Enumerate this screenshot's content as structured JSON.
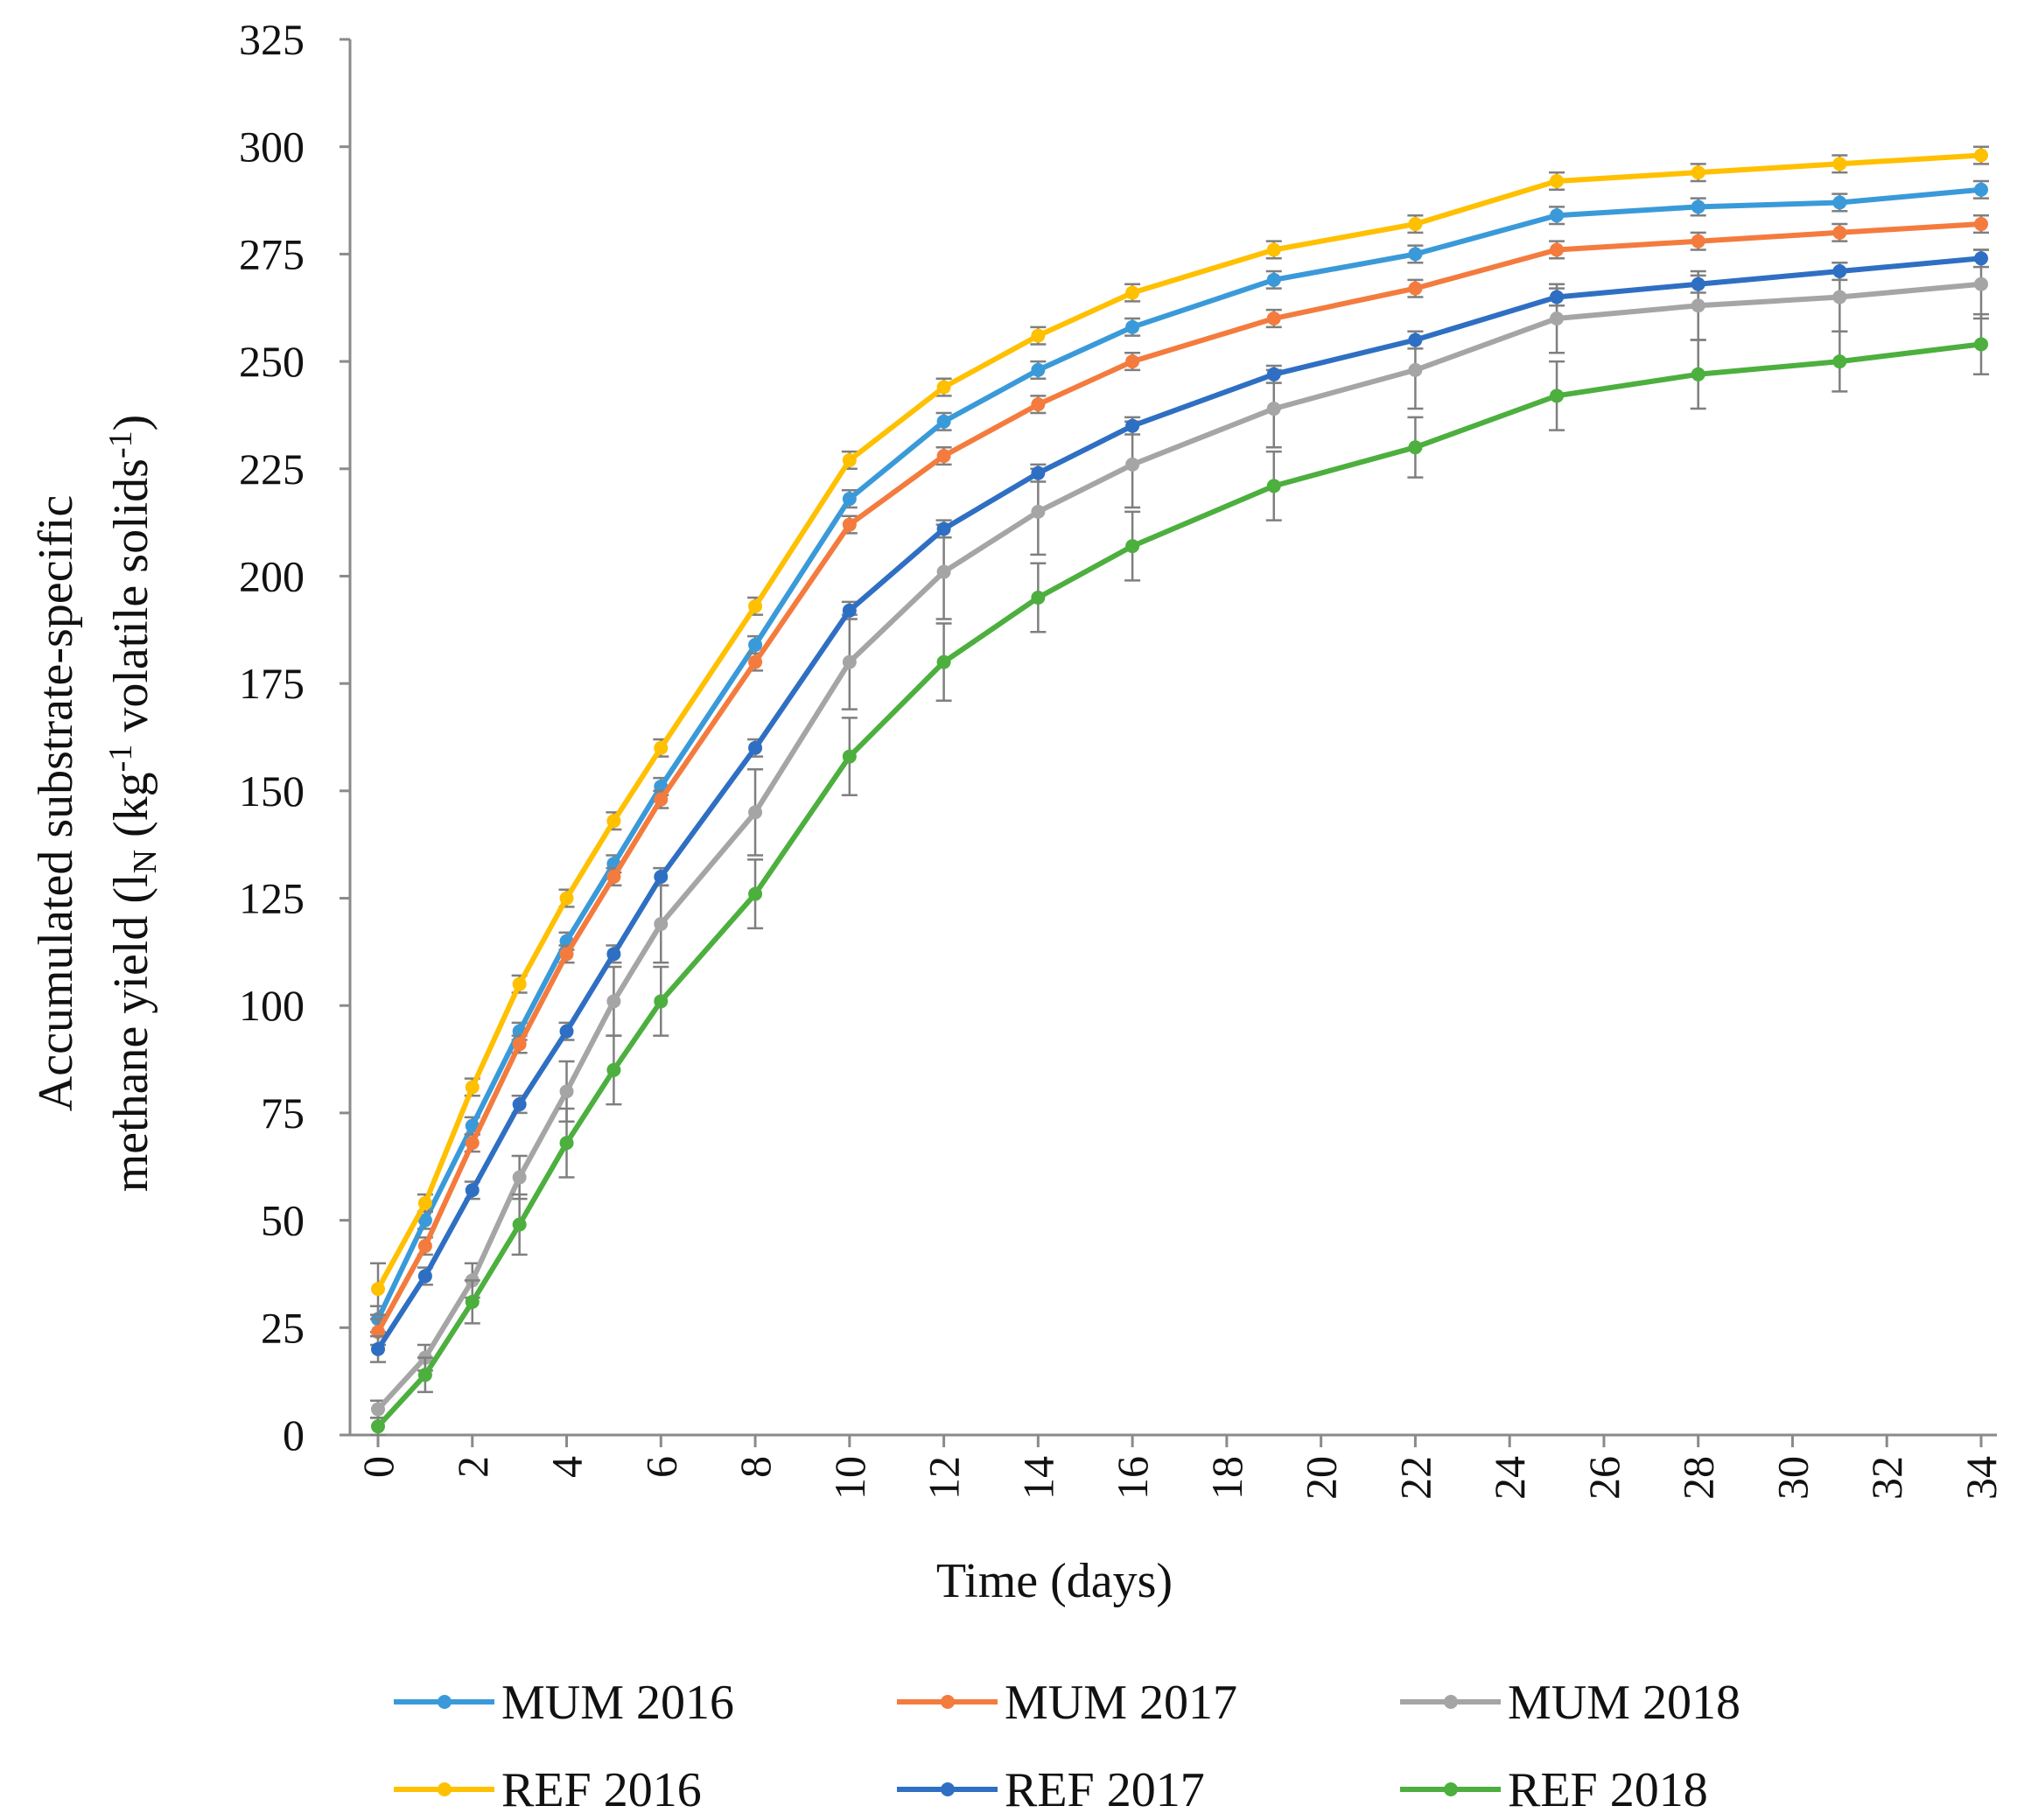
{
  "chart_data": {
    "type": "line",
    "title": "",
    "xlabel": "Time (days)",
    "ylabel_line1": "Accumulated substrate-specific",
    "ylabel_line2_parts": [
      "methane yield (l",
      "N",
      " (kg",
      "-1",
      " volatile solids",
      "-1",
      ")"
    ],
    "xlim": [
      0,
      34
    ],
    "ylim": [
      0,
      325
    ],
    "x_ticks": [
      0,
      2,
      4,
      6,
      8,
      10,
      12,
      14,
      16,
      18,
      20,
      22,
      24,
      26,
      28,
      30,
      32,
      34
    ],
    "y_ticks": [
      0,
      25,
      50,
      75,
      100,
      125,
      150,
      175,
      200,
      225,
      250,
      275,
      300,
      325
    ],
    "grid": false,
    "legend_position": "bottom",
    "x": [
      0,
      1,
      2,
      3,
      4,
      5,
      6,
      8,
      10,
      12,
      14,
      16,
      19,
      22,
      25,
      28,
      31,
      34
    ],
    "series": [
      {
        "name": "MUM 2016",
        "color": "#3A9AD9",
        "values": [
          27,
          50,
          72,
          94,
          115,
          133,
          151,
          184,
          218,
          236,
          248,
          258,
          269,
          275,
          284,
          286,
          287,
          290
        ],
        "errors": [
          3,
          2,
          2,
          2,
          2,
          2,
          2,
          2,
          2,
          2,
          2,
          2,
          2,
          2,
          2,
          2,
          2,
          2
        ]
      },
      {
        "name": "MUM 2017",
        "color": "#F47B3E",
        "values": [
          24,
          44,
          68,
          91,
          112,
          130,
          148,
          180,
          212,
          228,
          240,
          250,
          260,
          267,
          276,
          278,
          280,
          282
        ],
        "errors": [
          3,
          2,
          2,
          2,
          2,
          2,
          2,
          2,
          2,
          2,
          2,
          2,
          2,
          2,
          2,
          2,
          2,
          2
        ]
      },
      {
        "name": "MUM 2018",
        "color": "#A5A5A5",
        "values": [
          6,
          18,
          36,
          60,
          80,
          101,
          119,
          145,
          180,
          201,
          215,
          226,
          239,
          248,
          260,
          263,
          265,
          268
        ],
        "errors": [
          2,
          3,
          4,
          5,
          7,
          8,
          9,
          10,
          11,
          11,
          10,
          10,
          9,
          9,
          8,
          8,
          8,
          8
        ]
      },
      {
        "name": "REF 2016",
        "color": "#FFC000",
        "values": [
          34,
          54,
          81,
          105,
          125,
          143,
          160,
          193,
          227,
          244,
          256,
          266,
          276,
          282,
          292,
          294,
          296,
          298
        ],
        "errors": [
          6,
          2,
          2,
          2,
          2,
          2,
          2,
          2,
          2,
          2,
          2,
          2,
          2,
          2,
          2,
          2,
          2,
          2
        ]
      },
      {
        "name": "REF 2017",
        "color": "#2F6FC3",
        "values": [
          20,
          37,
          57,
          77,
          94,
          112,
          130,
          160,
          192,
          211,
          224,
          235,
          247,
          255,
          265,
          268,
          271,
          274
        ],
        "errors": [
          3,
          2,
          2,
          2,
          2,
          2,
          2,
          2,
          2,
          2,
          2,
          2,
          2,
          2,
          2,
          2,
          2,
          2
        ]
      },
      {
        "name": "REF 2018",
        "color": "#4CAF3E",
        "values": [
          2,
          14,
          31,
          49,
          68,
          85,
          101,
          126,
          158,
          180,
          195,
          207,
          221,
          230,
          242,
          247,
          250,
          254
        ],
        "errors": [
          2,
          4,
          5,
          7,
          8,
          8,
          8,
          8,
          9,
          9,
          8,
          8,
          8,
          7,
          8,
          8,
          7,
          7
        ]
      }
    ]
  }
}
